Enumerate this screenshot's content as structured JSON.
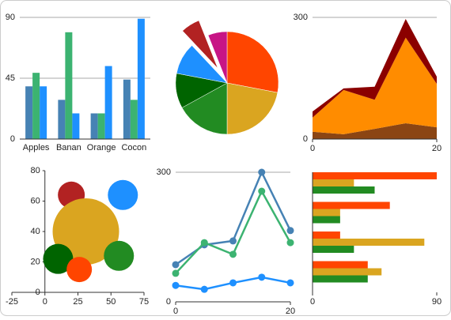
{
  "chart_data": [
    {
      "type": "bar",
      "categories": [
        "Apples",
        "Banan",
        "Orange",
        "Cocon"
      ],
      "series": [
        {
          "color": "#4682b4",
          "values": [
            39,
            29,
            19,
            44
          ]
        },
        {
          "color": "#3cb371",
          "values": [
            49,
            79,
            19,
            29
          ]
        },
        {
          "color": "#1e90ff",
          "values": [
            39,
            19,
            54,
            89
          ]
        }
      ],
      "ylim": [
        0,
        90
      ],
      "yticks": [
        0,
        45,
        90
      ],
      "grid": true
    },
    {
      "type": "pie",
      "values": [
        28,
        22,
        17,
        11,
        10,
        6,
        6
      ],
      "colors": [
        "#ff4500",
        "#daa520",
        "#228b22",
        "#006400",
        "#1e90ff",
        "#b22222",
        "#c71585"
      ],
      "exploded_index": 5
    },
    {
      "type": "area",
      "x": [
        0,
        5,
        10,
        15,
        20
      ],
      "series": [
        {
          "color": "#8b4513",
          "values": [
            18,
            12,
            25,
            39,
            29
          ]
        },
        {
          "color": "#ff8c00",
          "values": [
            35,
            109,
            72,
            211,
            107
          ]
        },
        {
          "color": "#8b0000",
          "values": [
            15,
            4,
            32,
            46,
            18
          ]
        }
      ],
      "xlim": [
        0,
        20
      ],
      "xticks": [
        0,
        20
      ],
      "ylim": [
        0,
        300
      ],
      "yticks": [
        0,
        300
      ],
      "grid": true
    },
    {
      "type": "bubble",
      "points": [
        {
          "x": 20,
          "y": 64,
          "size": 17,
          "color": "#b22222"
        },
        {
          "x": 59,
          "y": 64,
          "size": 19,
          "color": "#1e90ff"
        },
        {
          "x": 31,
          "y": 40,
          "size": 42,
          "color": "#daa520"
        },
        {
          "x": 10,
          "y": 22,
          "size": 19,
          "color": "#006400"
        },
        {
          "x": 56,
          "y": 24,
          "size": 19,
          "color": "#228b22"
        },
        {
          "x": 26,
          "y": 15,
          "size": 16,
          "color": "#ff4500"
        }
      ],
      "xlim": [
        -25,
        75
      ],
      "xticks": [
        -25,
        0,
        25,
        50,
        75
      ],
      "ylim": [
        0,
        80
      ],
      "yticks": [
        0,
        20,
        40,
        60,
        80
      ],
      "grid": false
    },
    {
      "type": "line",
      "x": [
        0,
        5,
        10,
        15,
        20
      ],
      "series": [
        {
          "color": "#4682b4",
          "values": [
            86,
            132,
            141,
            300,
            165
          ]
        },
        {
          "color": "#3cb371",
          "values": [
            66,
            137,
            110,
            256,
            137
          ]
        },
        {
          "color": "#1e90ff",
          "values": [
            38,
            29,
            44,
            57,
            44
          ]
        }
      ],
      "xlim": [
        0,
        20
      ],
      "xticks": [
        0,
        20
      ],
      "ylim": [
        0,
        300
      ],
      "yticks": [
        0,
        300
      ],
      "grid": true
    },
    {
      "type": "hbar",
      "categories": [
        null,
        null,
        null,
        null
      ],
      "series": [
        {
          "color": "#ff4500",
          "values": [
            90,
            56,
            20,
            40
          ]
        },
        {
          "color": "#daa520",
          "values": [
            30,
            20,
            81,
            50
          ]
        },
        {
          "color": "#228b22",
          "values": [
            45,
            20,
            30,
            40
          ]
        }
      ],
      "xlim": [
        0,
        90
      ],
      "xticks": [
        0,
        90
      ],
      "grid": false
    }
  ]
}
